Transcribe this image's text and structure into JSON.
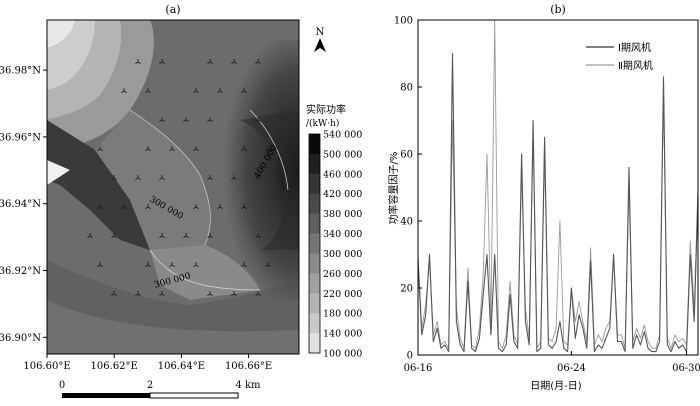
{
  "chart_data": [
    {
      "type": "heatmap",
      "panel_label": "(a)",
      "colorbar": {
        "title_line1": "实际功率",
        "title_line2": "/(kW·h)",
        "levels": [
          540000,
          500000,
          460000,
          420000,
          380000,
          340000,
          300000,
          260000,
          220000,
          180000,
          140000,
          100000
        ],
        "level_labels": [
          "540 000",
          "500 000",
          "460 000",
          "420 000",
          "380 000",
          "340 000",
          "300 000",
          "260 000",
          "220 000",
          "180 000",
          "140 000",
          "100 000"
        ]
      },
      "x_ticks": [
        "106.60°E",
        "106.62°E",
        "106.64°E",
        "106.66°E"
      ],
      "y_ticks": [
        "36.98°N",
        "36.96°N",
        "36.94°N",
        "36.92°N",
        "36.90°N"
      ],
      "xlim": [
        106.6,
        106.675
      ],
      "ylim": [
        36.895,
        36.995
      ],
      "contour_labels": [
        "400 000",
        "300 000",
        "300 000"
      ],
      "north_label": "N",
      "scale_bar": {
        "ticks": [
          "0",
          "2",
          "4 km"
        ]
      }
    },
    {
      "type": "line",
      "panel_label": "(b)",
      "xlabel": "日期(月-日)",
      "ylabel": "功率容量因子/%",
      "ylim": [
        0,
        100
      ],
      "y_ticks": [
        "0",
        "20",
        "40",
        "60",
        "80",
        "100"
      ],
      "x_ticks": [
        "06-16",
        "06-24",
        "06-30"
      ],
      "xlim": [
        0,
        14.6
      ],
      "x_tick_positions": [
        0,
        8,
        14
      ],
      "grid": false,
      "legend": "top-right",
      "series": [
        {
          "name": "Ⅰ期风机",
          "color": "#555555",
          "x": [
            0.0,
            0.2,
            0.4,
            0.6,
            0.8,
            1.0,
            1.2,
            1.4,
            1.6,
            1.8,
            2.0,
            2.2,
            2.4,
            2.6,
            2.8,
            3.0,
            3.2,
            3.4,
            3.6,
            3.8,
            4.0,
            4.2,
            4.4,
            4.6,
            4.8,
            5.0,
            5.2,
            5.4,
            5.6,
            5.8,
            6.0,
            6.2,
            6.4,
            6.6,
            6.8,
            7.0,
            7.2,
            7.4,
            7.6,
            7.8,
            8.0,
            8.2,
            8.4,
            8.6,
            8.8,
            9.0,
            9.2,
            9.4,
            9.6,
            9.8,
            10.0,
            10.2,
            10.4,
            10.6,
            10.8,
            11.0,
            11.2,
            11.4,
            11.6,
            11.8,
            12.0,
            12.2,
            12.4,
            12.6,
            12.8,
            13.0,
            13.2,
            13.4,
            13.6,
            13.8,
            14.0,
            14.2,
            14.4,
            14.6
          ],
          "values": [
            28,
            6,
            12,
            30,
            4,
            8,
            2,
            3,
            1,
            90,
            10,
            3,
            1,
            22,
            2,
            1,
            5,
            18,
            30,
            6,
            30,
            2,
            1,
            3,
            18,
            4,
            2,
            60,
            10,
            3,
            70,
            1,
            2,
            65,
            3,
            2,
            4,
            10,
            2,
            1,
            20,
            5,
            12,
            8,
            2,
            28,
            1,
            3,
            2,
            5,
            8,
            30,
            4,
            4,
            1,
            56,
            2,
            6,
            3,
            7,
            2,
            1,
            1,
            4,
            83,
            3,
            1,
            4,
            2,
            3,
            1,
            30,
            10,
            48
          ]
        },
        {
          "name": "Ⅱ期风机",
          "color": "#9a9a9a",
          "x": [
            0.0,
            0.2,
            0.4,
            0.6,
            0.8,
            1.0,
            1.2,
            1.4,
            1.6,
            1.8,
            2.0,
            2.2,
            2.4,
            2.6,
            2.8,
            3.0,
            3.2,
            3.4,
            3.6,
            3.8,
            4.0,
            4.2,
            4.4,
            4.6,
            4.8,
            5.0,
            5.2,
            5.4,
            5.6,
            5.8,
            6.0,
            6.2,
            6.4,
            6.6,
            6.8,
            7.0,
            7.2,
            7.4,
            7.6,
            7.8,
            8.0,
            8.2,
            8.4,
            8.6,
            8.8,
            9.0,
            9.2,
            9.4,
            9.6,
            9.8,
            10.0,
            10.2,
            10.4,
            10.6,
            10.8,
            11.0,
            11.2,
            11.4,
            11.6,
            11.8,
            12.0,
            12.2,
            12.4,
            12.6,
            12.8,
            13.0,
            13.2,
            13.4,
            13.6,
            13.8,
            14.0,
            14.2,
            14.4,
            14.6
          ],
          "values": [
            30,
            8,
            15,
            28,
            6,
            10,
            3,
            4,
            2,
            70,
            14,
            5,
            2,
            26,
            3,
            2,
            8,
            24,
            60,
            10,
            100,
            4,
            2,
            6,
            22,
            6,
            3,
            55,
            14,
            5,
            66,
            2,
            4,
            60,
            5,
            4,
            8,
            40,
            4,
            3,
            20,
            10,
            16,
            10,
            4,
            32,
            3,
            6,
            4,
            8,
            10,
            30,
            6,
            6,
            2,
            50,
            4,
            8,
            5,
            9,
            4,
            2,
            2,
            6,
            78,
            5,
            2,
            6,
            4,
            5,
            3,
            34,
            14,
            50
          ]
        }
      ]
    }
  ]
}
